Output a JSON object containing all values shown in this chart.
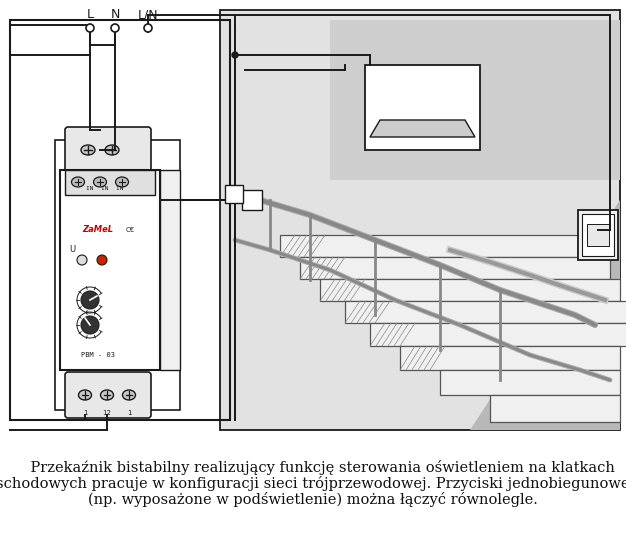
{
  "caption_line1": "    Przekaźnik bistabilny realizujący funkcję sterowania oświetleniem na klatkach",
  "caption_line2": "schodowych pracuje w konfiguracji sieci trójprzewodowej. Przyciski jednobiegunowe",
  "caption_line3": "(np. wyposażone w podświetlenie) można łączyć równolegle.",
  "bg_color": "#ffffff",
  "line_color": "#1a1a1a",
  "relay_label": "ZaMeL",
  "relay_model": "PBM - 03",
  "L_label": "L",
  "N_label": "N",
  "LN_label": "L/N",
  "caption_fontsize": 10.5,
  "fig_width": 6.26,
  "fig_height": 5.39,
  "dpi": 100
}
